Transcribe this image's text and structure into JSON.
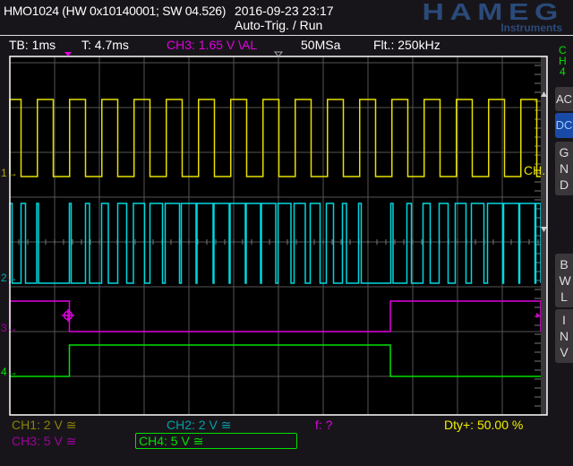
{
  "header": {
    "device": "HMO1024 (HW 0x10140001; SW 04.526)",
    "datetime": "2016-09-23 23:17",
    "trigger_mode": "Auto-Trig. / Run",
    "logo": "HAMEG",
    "logo_sub": "Instruments"
  },
  "status_bar": {
    "timebase": "TB: 1ms",
    "trigger_time": "T: 4.7ms",
    "trigger_info": "CH3: 1.65 V \\AL",
    "sample_rate": "50MSa",
    "filter": "Flt.: 250kHz"
  },
  "side_panel": {
    "channel": [
      "C",
      "H",
      "4"
    ],
    "buttons": [
      {
        "label": "AC",
        "active": false
      },
      {
        "label": "DC",
        "active": true
      },
      {
        "label": "GND",
        "active": false
      },
      {
        "label": "BWL",
        "active": false
      },
      {
        "label": "INV",
        "active": false
      }
    ]
  },
  "channel_markers": [
    "1",
    "2",
    "3",
    "4"
  ],
  "ch1_label": "CH.",
  "footer": {
    "ch1": "CH1: 2 V ≅",
    "ch2": "CH2: 2 V ≅",
    "ch3": "CH3: 5 V ≅",
    "ch4": "CH4: 5 V ≅",
    "freq": "f: ?",
    "duty": "Dty+: 50.00 %"
  },
  "colors": {
    "ch1": "#e8e000",
    "ch2": "#00d8e0",
    "ch3": "#e000e0",
    "ch4": "#00e000",
    "grid": "#555555",
    "accent": "#1a4aa8",
    "logo": "#2a4a7a"
  },
  "chart_data": {
    "type": "line",
    "x_unit": "ms",
    "x_range": [
      0,
      12
    ],
    "grid": true,
    "series": [
      {
        "name": "CH1",
        "kind": "square",
        "period_ms": 0.72,
        "first_fall_ms": 0.25,
        "high_ms": 0.355,
        "start": "high"
      },
      {
        "name": "CH2",
        "high_intervals_ms": [
          [
            0,
            0.05
          ],
          [
            0.25,
            0.35
          ],
          [
            0.6,
            0.64
          ],
          [
            1.33,
            1.37
          ],
          [
            1.69,
            1.78
          ],
          [
            2.05,
            2.2
          ],
          [
            2.41,
            2.61
          ],
          [
            2.76,
            3.01
          ],
          [
            3.13,
            3.41
          ],
          [
            3.47,
            3.79
          ],
          [
            3.83,
            4.16
          ],
          [
            4.18,
            4.54
          ],
          [
            4.56,
            4.9
          ],
          [
            4.92,
            5.26
          ],
          [
            5.28,
            5.6
          ],
          [
            5.62,
            5.94
          ],
          [
            5.99,
            6.28
          ],
          [
            6.35,
            6.6
          ],
          [
            6.71,
            6.93
          ],
          [
            7.07,
            7.23
          ],
          [
            7.43,
            7.52
          ],
          [
            7.79,
            7.85
          ],
          [
            8.51,
            8.56
          ],
          [
            8.87,
            8.97
          ],
          [
            9.23,
            9.39
          ],
          [
            9.59,
            9.79
          ],
          [
            9.95,
            10.19
          ],
          [
            10.31,
            10.59
          ],
          [
            10.67,
            11.01
          ],
          [
            11.03,
            11.37
          ],
          [
            11.39,
            11.73
          ],
          [
            11.75,
            11.86
          ]
        ]
      },
      {
        "name": "CH3",
        "high_intervals_ms": [
          [
            0,
            1.33
          ],
          [
            8.5,
            11.86
          ]
        ]
      },
      {
        "name": "CH4",
        "high_intervals_ms": [
          [
            1.33,
            8.5
          ]
        ]
      }
    ]
  }
}
